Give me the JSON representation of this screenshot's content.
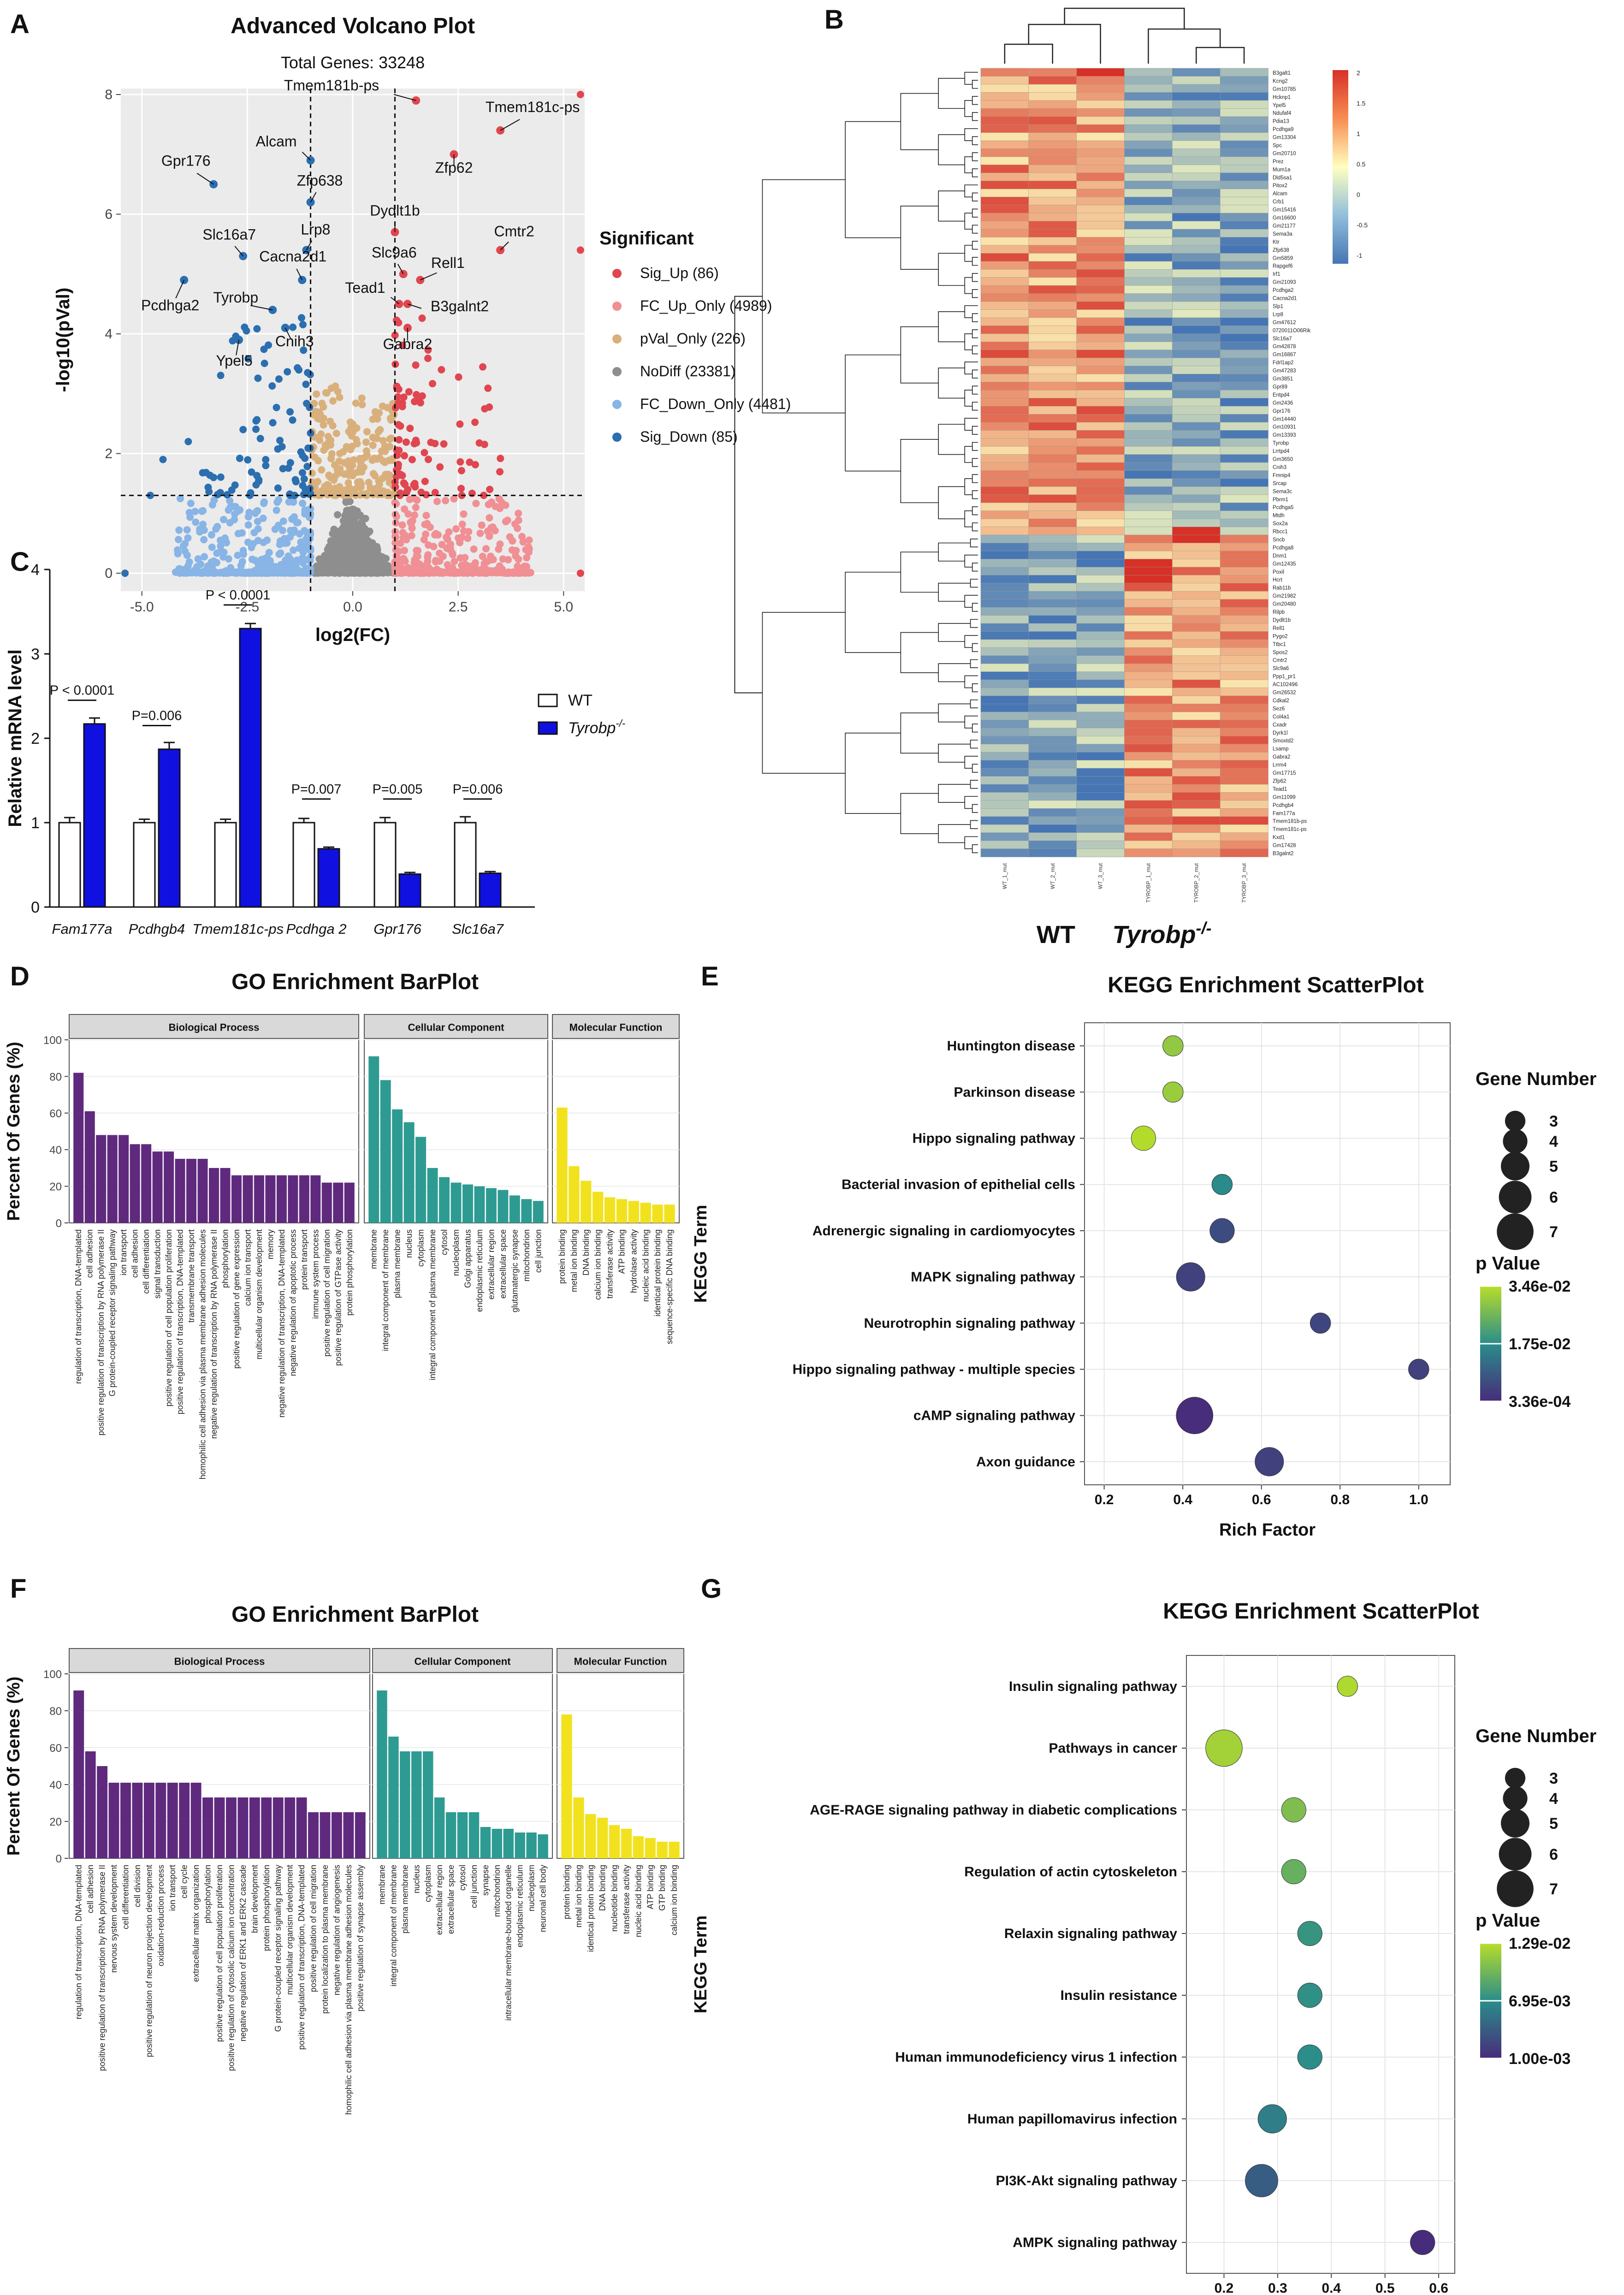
{
  "panel_letters": [
    "A",
    "B",
    "C",
    "D",
    "E",
    "F",
    "G"
  ],
  "chart_data": [
    {
      "panel": "A",
      "type": "scatter",
      "title": "Advanced Volcano Plot",
      "subtitle": "Total Genes: 33248",
      "xlabel": "log2(FC)",
      "ylabel": "-log10(pVal)",
      "xlim": [
        -5.5,
        5.5
      ],
      "ylim": [
        -0.3,
        8.1
      ],
      "xticks": [
        "-5.0",
        "-2.5",
        "0.0",
        "2.5",
        "5.0"
      ],
      "xtick_values": [
        -5,
        -2.5,
        0,
        2.5,
        5
      ],
      "yticks": [
        "0",
        "2",
        "4",
        "6",
        "8"
      ],
      "ytick_values": [
        0,
        2,
        4,
        6,
        8
      ],
      "thresholds": {
        "fc": [
          -1,
          1
        ],
        "pval": 1.3
      },
      "legend_title": "Significant",
      "legend": [
        {
          "label": "Sig_Up (86)",
          "color": "#e0464f"
        },
        {
          "label": "FC_Up_Only (4989)",
          "color": "#f08f94"
        },
        {
          "label": "pVal_Only (226)",
          "color": "#d9b07c"
        },
        {
          "label": "NoDiff (23381)",
          "color": "#8e8e8e"
        },
        {
          "label": "FC_Down_Only (4481)",
          "color": "#88b4e6"
        },
        {
          "label": "Sig_Down (85)",
          "color": "#2b6fb0"
        }
      ],
      "labeled_genes": [
        {
          "name": "Tmem181b-ps",
          "x": 1.5,
          "y": 7.9
        },
        {
          "name": "Tmem181c-ps",
          "x": 3.5,
          "y": 7.4
        },
        {
          "name": "Alcam",
          "x": -1.0,
          "y": 6.9
        },
        {
          "name": "Zfp62",
          "x": 2.4,
          "y": 7.0
        },
        {
          "name": "Zfp638",
          "x": -1.0,
          "y": 6.2
        },
        {
          "name": "Gpr176",
          "x": -3.3,
          "y": 6.5
        },
        {
          "name": "Dydlt1b",
          "x": 1.0,
          "y": 5.7
        },
        {
          "name": "Slc16a7",
          "x": -2.6,
          "y": 5.3
        },
        {
          "name": "Lrp8",
          "x": -1.1,
          "y": 5.4
        },
        {
          "name": "Cmtr2",
          "x": 3.5,
          "y": 5.4
        },
        {
          "name": "Cacna2d1",
          "x": -1.2,
          "y": 4.9
        },
        {
          "name": "Slc9a6",
          "x": 1.2,
          "y": 5.0
        },
        {
          "name": "Rell1",
          "x": 1.6,
          "y": 4.9
        },
        {
          "name": "Pcdhga2",
          "x": -4.0,
          "y": 4.9
        },
        {
          "name": "Tyrobp",
          "x": -1.9,
          "y": 4.4
        },
        {
          "name": "Tead1",
          "x": 1.1,
          "y": 4.5
        },
        {
          "name": "B3galnt2",
          "x": 1.3,
          "y": 4.5
        },
        {
          "name": "Cnih3",
          "x": -1.6,
          "y": 4.1
        },
        {
          "name": "Gabra2",
          "x": 1.3,
          "y": 4.1
        },
        {
          "name": "Ypel5",
          "x": -2.7,
          "y": 3.9
        }
      ]
    },
    {
      "panel": "B",
      "type": "heatmap",
      "columns": [
        "WT_1_mut",
        "WT_2_mut",
        "WT_3_mut",
        "TYROBP_1_mut",
        "TYROBP_2_mut",
        "TYROBP_3_mut"
      ],
      "group_labels": [
        "WT",
        "Tyrobp-/-"
      ],
      "color_scale": {
        "ticks": [
          "2",
          "1.5",
          "1",
          "0.5",
          "0",
          "-0.5",
          "-1"
        ],
        "low": "#4575b4",
        "mid": "#ffffbf",
        "high": "#d73027"
      },
      "clusters": [
        {
          "name": "up_in_WT",
          "rows": 58,
          "wt_level": 0.8,
          "ko_level": -0.8
        },
        {
          "name": "up_in_Tyrobp",
          "rows": 56,
          "wt_level": -0.8,
          "ko_level": 0.8
        }
      ],
      "rows": [
        "B3galt1",
        "Kcng2",
        "Gm10785",
        "Hcknp1",
        "Ypel5",
        "Ndufaf4",
        "Pdia13",
        "Pcdhga9",
        "Gm13304",
        "Spc",
        "Gm20710",
        "Prez",
        "Mum1a",
        "Dld5sa1",
        "Pitox2",
        "Alcam",
        "Crb1",
        "Gm15416",
        "Gm16600",
        "Gm21177",
        "Sema3a",
        "Ktr",
        "Zfp638",
        "Gm5859",
        "Rapgef6",
        "Irf1",
        "Gm21093",
        "Pcdhga2",
        "Cacna2d1",
        "Slp1",
        "Lrp8",
        "Gm47612",
        "0720011O06Rik",
        "Slc16a7",
        "Gm42878",
        "Gm16867",
        "Fdrl1ap2",
        "Gm47283",
        "Gm3851",
        "Gpr89",
        "Entpd4",
        "Gm2436",
        "Gpr176",
        "Gm14440",
        "Gm10931",
        "Gm13393",
        "Tyrobp",
        "Lrrtpd4",
        "Gm3650",
        "Cnih3",
        "Fmnip4",
        "Srcap",
        "Sema3c",
        "Pbrm1",
        "Pcdhga5",
        "Mtdh",
        "Sox2a",
        "Rbcc1",
        "Sncb",
        "Pcdhga8",
        "Dnm1",
        "Gm12435",
        "Poxil",
        "Hcrt",
        "Rab11b",
        "Gm21982",
        "Gm20480",
        "Rilpb",
        "Dydlt1b",
        "Rell1",
        "Pygo2",
        "Ttbc1",
        "Spos2",
        "Cmtr2",
        "Slc9a6",
        "Ppp1_pr1",
        "AC102496",
        "Gm26532",
        "Cdkal2",
        "Sez6",
        "Col4a1",
        "Cxadr",
        "Dyrk1l",
        "Smoxtd2",
        "Lsamp",
        "Gabra2",
        "Lrrm4",
        "Gm17715",
        "Zfp62",
        "Tead1",
        "Gm11099",
        "Pcdhgb4",
        "Fam177a",
        "Tmem181b-ps",
        "Tmem181c-ps",
        "Kxd1",
        "Gm17428",
        "B3galnt2"
      ]
    },
    {
      "panel": "C",
      "type": "bar",
      "ylabel": "Relative mRNA level",
      "ylim": [
        0,
        4
      ],
      "yticks": [
        "0",
        "1",
        "2",
        "3",
        "4"
      ],
      "categories": [
        "Fam177a",
        "Pcdhgb4",
        "Tmem181c-ps",
        "Pcdhga 2",
        "Gpr176",
        "Slc16a7"
      ],
      "series": [
        {
          "name": "WT",
          "values": [
            1.0,
            1.0,
            1.0,
            1.0,
            1.0,
            1.0
          ],
          "errors": [
            0.06,
            0.04,
            0.04,
            0.05,
            0.06,
            0.07
          ]
        },
        {
          "name": "Tyrobp-/-",
          "values": [
            2.17,
            1.87,
            3.3,
            0.69,
            0.39,
            0.4
          ],
          "errors": [
            0.07,
            0.08,
            0.06,
            0.02,
            0.02,
            0.02
          ]
        }
      ],
      "pvalues": [
        "P < 0.0001",
        "P=0.006",
        "P < 0.0001",
        "P=0.007",
        "P=0.005",
        "P=0.006"
      ],
      "legend": [
        {
          "label": "WT",
          "color": "#ffffff"
        },
        {
          "label": "Tyrobp",
          "sup": "-/-",
          "color": "#1010e0"
        }
      ]
    },
    {
      "panel": "D",
      "type": "bar",
      "title": "GO Enrichment BarPlot",
      "ylabel": "Percent Of Genes (%)",
      "ylim": [
        0,
        100
      ],
      "yticks": [
        "0",
        "20",
        "40",
        "60",
        "80",
        "100"
      ],
      "facets": [
        {
          "name": "Biological Process",
          "color": "#5f2a7e",
          "terms": [
            "regulation of transcription, DNA-templated",
            "cell adhesion",
            "positive regulation of transcription by RNA polymerase II",
            "G protein-coupled receptor signaling pathway",
            "ion transport",
            "cell adhesion",
            "cell differentiation",
            "signal transduction",
            "positive regulation of cell population proliferation",
            "positive regulation of transcription, DNA-templated",
            "transmembrane transport",
            "homophilic cell adhesion via plasma membrane adhesion molecules",
            "negative regulation of transcription by RNA polymerase II",
            "phosphorylation",
            "positive regulation of gene expression",
            "calcium ion transport",
            "multicellular organism development",
            "memory",
            "negative regulation of transcription, DNA-templated",
            "negative regulation of apoptotic process",
            "protein transport",
            "immune system process",
            "positive regulation of cell migration",
            "positive regulation of GTPase activity",
            "protein phosphorylation"
          ],
          "values": [
            82,
            61,
            48,
            48,
            48,
            43,
            43,
            39,
            39,
            35,
            35,
            35,
            30,
            30,
            26,
            26,
            26,
            26,
            26,
            26,
            26,
            26,
            22,
            22,
            22
          ]
        },
        {
          "name": "Cellular Component",
          "color": "#2e9b92",
          "terms": [
            "membrane",
            "integral component of membrane",
            "plasma membrane",
            "nucleus",
            "cytoplasm",
            "integral component of plasma membrane",
            "cytosol",
            "nucleoplasm",
            "Golgi apparatus",
            "endoplasmic reticulum",
            "extracellular region",
            "extracellular space",
            "glutamatergic synapse",
            "mitochondrion",
            "cell junction"
          ],
          "values": [
            91,
            78,
            62,
            55,
            47,
            30,
            25,
            22,
            21,
            20,
            19,
            18,
            15,
            13,
            12
          ]
        },
        {
          "name": "Molecular Function",
          "color": "#f2e21e",
          "terms": [
            "protein binding",
            "metal ion binding",
            "DNA binding",
            "calcium ion binding",
            "transferase activity",
            "ATP binding",
            "hydrolase activity",
            "nucleic acid binding",
            "identical protein binding",
            "sequence-specific DNA binding"
          ],
          "values": [
            63,
            31,
            23,
            17,
            14,
            13,
            12,
            11,
            10,
            10
          ]
        }
      ]
    },
    {
      "panel": "E",
      "type": "scatter",
      "title": "KEGG Enrichment ScatterPlot",
      "xlabel": "Rich Factor",
      "ylabel": "KEGG Term",
      "xlim": [
        0.15,
        1.08
      ],
      "xticks": [
        "0.2",
        "0.4",
        "0.6",
        "0.8",
        "1.0"
      ],
      "xtick_values": [
        0.2,
        0.4,
        0.6,
        0.8,
        1.0
      ],
      "terms": [
        "Huntington disease",
        "Parkinson disease",
        "Hippo signaling pathway",
        "Bacterial invasion of epithelial cells",
        "Adrenergic signaling in cardiomyocytes",
        "MAPK signaling pathway",
        "Neurotrophin signaling pathway",
        "Hippo signaling pathway - multiple species",
        "cAMP signaling pathway",
        "Axon guidance"
      ],
      "rich_factor": [
        0.375,
        0.375,
        0.3,
        0.5,
        0.5,
        0.42,
        0.75,
        1.0,
        0.43,
        0.62
      ],
      "gene_number": [
        3,
        3,
        4,
        3,
        4,
        5,
        3,
        3,
        7,
        5
      ],
      "p_value": [
        0.03,
        0.031,
        0.034,
        0.017,
        0.006,
        0.004,
        0.005,
        0.004,
        0.0005,
        0.004
      ],
      "size_legend_title": "Gene Number",
      "size_legend": [
        "3",
        "4",
        "5",
        "6",
        "7"
      ],
      "color_legend_title": "p Value",
      "color_legend": [
        "3.46e-02",
        "1.75e-02",
        "3.36e-04"
      ],
      "pmin": 0.000336,
      "pmax": 0.0346
    },
    {
      "panel": "F",
      "type": "bar",
      "title": "GO Enrichment BarPlot",
      "ylabel": "Percent Of Genes (%)",
      "ylim": [
        0,
        100
      ],
      "yticks": [
        "0",
        "20",
        "40",
        "60",
        "80",
        "100"
      ],
      "facets": [
        {
          "name": "Biological Process",
          "color": "#5f2a7e",
          "terms": [
            "regulation of transcription, DNA-templated",
            "cell adhesion",
            "positive regulation of transcription by RNA polymerase II",
            "nervous system development",
            "cell differentiation",
            "cell division",
            "positive regulation of neuron projection development",
            "oxidation-reduction process",
            "ion transport",
            "cell cycle",
            "extracellular matrix organization",
            "phosphorylation",
            "positive regulation of cell population proliferation",
            "positive regulation of cytosolic calcium ion concentration",
            "negative regulation of ERK1 and ERK2 cascade",
            "brain development",
            "protein phosphorylation",
            "G protein-coupled receptor signaling pathway",
            "multicellular organism development",
            "positive regulation of transcription, DNA-templated",
            "positive regulation of cell migration",
            "protein localization to plasma membrane",
            "negative regulation of angiogenesis",
            "homophilic cell adhesion via plasma membrane adhesion molecules",
            "positive regulation of synapse assembly"
          ],
          "values": [
            91,
            58,
            50,
            41,
            41,
            41,
            41,
            41,
            41,
            41,
            41,
            33,
            33,
            33,
            33,
            33,
            33,
            33,
            33,
            33,
            25,
            25,
            25,
            25,
            25
          ]
        },
        {
          "name": "Cellular Component",
          "color": "#2e9b92",
          "terms": [
            "membrane",
            "integral component of membrane",
            "plasma membrane",
            "nucleus",
            "cytoplasm",
            "extracellular region",
            "extracellular space",
            "cytosol",
            "cell junction",
            "synapse",
            "mitochondrion",
            "intracellular membrane-bounded organelle",
            "endoplasmic reticulum",
            "nucleoplasm",
            "neuronal cell body"
          ],
          "values": [
            91,
            66,
            58,
            58,
            58,
            33,
            25,
            25,
            25,
            17,
            16,
            16,
            14,
            14,
            13
          ]
        },
        {
          "name": "Molecular Function",
          "color": "#f2e21e",
          "terms": [
            "protein binding",
            "metal ion binding",
            "identical protein binding",
            "DNA binding",
            "nucleotide binding",
            "transferase activity",
            "nucleic acid binding",
            "ATP binding",
            "GTP binding",
            "calcium ion binding"
          ],
          "values": [
            78,
            33,
            24,
            22,
            18,
            16,
            12,
            11,
            9,
            9
          ]
        }
      ]
    },
    {
      "panel": "G",
      "type": "scatter",
      "title": "KEGG Enrichment ScatterPlot",
      "xlabel": "Rich Factor",
      "ylabel": "KEGG Term",
      "xlim": [
        0.13,
        0.63
      ],
      "xticks": [
        "0.2",
        "0.3",
        "0.4",
        "0.5",
        "0.6"
      ],
      "xtick_values": [
        0.2,
        0.3,
        0.4,
        0.5,
        0.6
      ],
      "terms": [
        "Insulin signaling pathway",
        "Pathways in cancer",
        "AGE-RAGE signaling pathway in diabetic complications",
        "Regulation of actin cytoskeleton",
        "Relaxin signaling pathway",
        "Insulin resistance",
        "Human immunodeficiency virus 1 infection",
        "Human papillomavirus infection",
        "PI3K-Akt signaling pathway",
        "AMPK signaling pathway"
      ],
      "rich_factor": [
        0.43,
        0.2,
        0.33,
        0.33,
        0.36,
        0.36,
        0.36,
        0.29,
        0.27,
        0.57
      ],
      "gene_number": [
        3,
        7,
        4,
        4,
        4,
        4,
        4,
        5,
        6,
        4
      ],
      "p_value": [
        0.0125,
        0.012,
        0.0105,
        0.0095,
        0.0075,
        0.0072,
        0.007,
        0.006,
        0.004,
        0.001
      ],
      "size_legend_title": "Gene Number",
      "size_legend": [
        "3",
        "4",
        "5",
        "6",
        "7"
      ],
      "color_legend_title": "p Value",
      "color_legend": [
        "1.29e-02",
        "6.95e-03",
        "1.00e-03"
      ],
      "pmin": 0.001,
      "pmax": 0.0129
    }
  ]
}
